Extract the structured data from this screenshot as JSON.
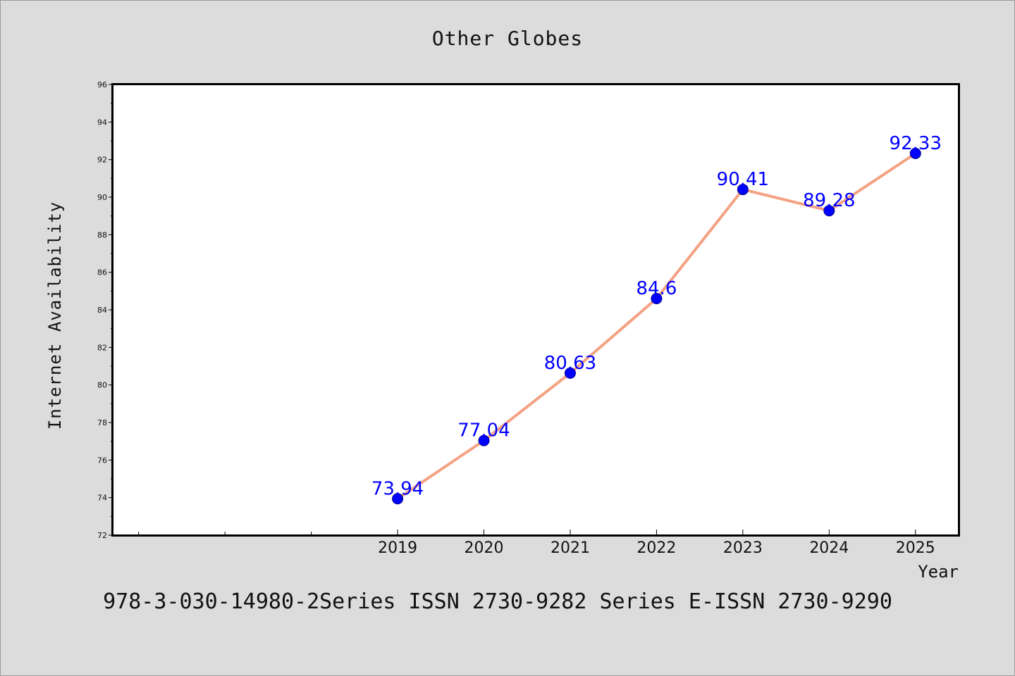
{
  "chart_data": {
    "type": "line",
    "title": "Other Globes",
    "xlabel": "Year",
    "ylabel": "Internet Availability",
    "x": [
      "2019",
      "2020",
      "2021",
      "2022",
      "2023",
      "2024",
      "2025"
    ],
    "x_values": [
      2019,
      2020,
      2021,
      2022,
      2023,
      2024,
      2025
    ],
    "xlim": [
      2015.7,
      2025.5
    ],
    "x_minor_ticks": [
      2016,
      2017,
      2018
    ],
    "series": [
      {
        "values": [
          73.94,
          77.04,
          80.63,
          84.6,
          90.41,
          89.28,
          92.33
        ],
        "labels": [
          "73.94",
          "77.04",
          "80.63",
          "84.6",
          "90.41",
          "89.28",
          "92.33"
        ],
        "line_color": "#f4a283",
        "marker_color": "#0000ff"
      }
    ],
    "ylim": [
      72,
      96
    ],
    "yticks": [
      72,
      74,
      76,
      78,
      80,
      82,
      84,
      86,
      88,
      90,
      92,
      94,
      96
    ],
    "grid": false,
    "legend": "none"
  },
  "footer": "978-3-030-14980-2Series ISSN 2730-9282 Series E-ISSN 2730-9290"
}
